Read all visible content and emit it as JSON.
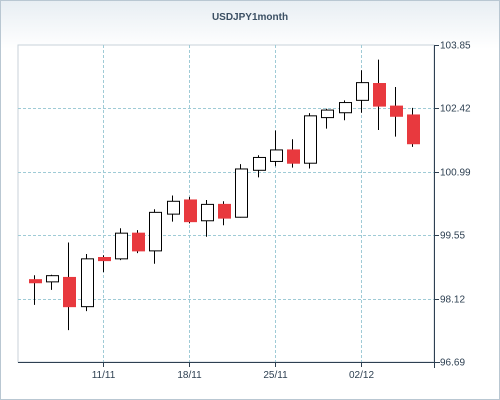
{
  "chart_data": {
    "type": "candlestick",
    "title": "USDJPY1month",
    "xlabel": "",
    "ylabel": "",
    "ylim": [
      96.69,
      103.85
    ],
    "yticks": [
      "103.85",
      "102.42",
      "100.99",
      "99.55",
      "98.12",
      "96.69"
    ],
    "xticks": [
      {
        "index": 4,
        "label": "11/11"
      },
      {
        "index": 9,
        "label": "18/11"
      },
      {
        "index": 14,
        "label": "25/11"
      },
      {
        "index": 19,
        "label": "02/12"
      }
    ],
    "grid": true,
    "up_color": "#ffffff",
    "down_color": "#e8393e",
    "candles": [
      {
        "o": 98.55,
        "h": 98.65,
        "l": 97.98,
        "c": 98.48
      },
      {
        "o": 98.5,
        "h": 98.66,
        "l": 98.32,
        "c": 98.64
      },
      {
        "o": 98.6,
        "h": 99.39,
        "l": 97.41,
        "c": 97.94
      },
      {
        "o": 97.94,
        "h": 99.13,
        "l": 97.84,
        "c": 99.02
      },
      {
        "o": 99.05,
        "h": 99.1,
        "l": 98.72,
        "c": 98.98
      },
      {
        "o": 99.02,
        "h": 99.71,
        "l": 98.99,
        "c": 99.6
      },
      {
        "o": 99.6,
        "h": 99.67,
        "l": 99.15,
        "c": 99.2
      },
      {
        "o": 99.2,
        "h": 100.14,
        "l": 98.91,
        "c": 100.07
      },
      {
        "o": 100.03,
        "h": 100.45,
        "l": 99.86,
        "c": 100.32
      },
      {
        "o": 100.35,
        "h": 100.42,
        "l": 99.82,
        "c": 99.86
      },
      {
        "o": 99.88,
        "h": 100.35,
        "l": 99.52,
        "c": 100.25
      },
      {
        "o": 100.25,
        "h": 100.32,
        "l": 99.78,
        "c": 99.94
      },
      {
        "o": 99.96,
        "h": 101.16,
        "l": 99.95,
        "c": 101.05
      },
      {
        "o": 101.02,
        "h": 101.36,
        "l": 100.86,
        "c": 101.31
      },
      {
        "o": 101.22,
        "h": 101.92,
        "l": 101.11,
        "c": 101.48
      },
      {
        "o": 101.48,
        "h": 101.72,
        "l": 101.08,
        "c": 101.18
      },
      {
        "o": 101.18,
        "h": 102.31,
        "l": 101.06,
        "c": 102.25
      },
      {
        "o": 102.21,
        "h": 102.41,
        "l": 101.96,
        "c": 102.38
      },
      {
        "o": 102.32,
        "h": 102.6,
        "l": 102.15,
        "c": 102.55
      },
      {
        "o": 102.6,
        "h": 103.28,
        "l": 102.32,
        "c": 103.0
      },
      {
        "o": 102.98,
        "h": 103.52,
        "l": 101.93,
        "c": 102.47
      },
      {
        "o": 102.47,
        "h": 102.9,
        "l": 101.78,
        "c": 102.24
      },
      {
        "o": 102.27,
        "h": 102.43,
        "l": 101.55,
        "c": 101.62
      }
    ]
  }
}
